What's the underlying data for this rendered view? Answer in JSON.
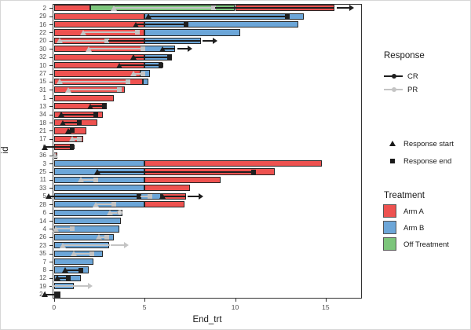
{
  "axes": {
    "x_label": "End_trt",
    "y_label": "id",
    "x_ticks": [
      0,
      5,
      10,
      15
    ],
    "x_range": [
      0,
      17
    ]
  },
  "legend": {
    "response": {
      "title": "Response",
      "items": [
        {
          "label": "CR",
          "color": "#1f1f1f"
        },
        {
          "label": "PR",
          "color": "#c4c4c4"
        }
      ]
    },
    "markers": [
      {
        "symbol": "triangle",
        "label": "Response start"
      },
      {
        "symbol": "square",
        "label": "Response end"
      }
    ],
    "treatment": {
      "title": "Treatment",
      "items": [
        {
          "label": "Arm A",
          "color": "#EE5250"
        },
        {
          "label": "Arm B",
          "color": "#6CA6D8"
        },
        {
          "label": "Off Treatment",
          "color": "#7CC57B"
        }
      ]
    }
  },
  "colors": {
    "armA": "#EE5250",
    "armB": "#6CA6D8",
    "off": "#7CC57B",
    "cr": "#1f1f1f",
    "pr": "#c4c4c4",
    "axis_text": "#4d4d4d",
    "panel_border": "#333333",
    "bar_border": "#262626"
  },
  "chart_data": {
    "type": "bar",
    "subtype": "swimmer-plot",
    "orientation": "horizontal",
    "xlabel": "End_trt",
    "ylabel": "id",
    "xlim": [
      0,
      17
    ],
    "grid": false,
    "legend_position": "right",
    "patients": [
      {
        "id": 2,
        "bars": [
          [
            "A",
            0,
            2.0
          ],
          [
            "O",
            2.0,
            10.0
          ],
          [
            "A",
            10.0,
            15.5
          ]
        ],
        "resp": [
          {
            "t": "PR",
            "a": 3.3,
            "b": 8.8,
            "sm": 1,
            "em": 1
          },
          {
            "t": "CR",
            "a": 8.9,
            "b": 15.5,
            "sm": 0,
            "em": 0
          }
        ],
        "arrow": {
          "t": "CR",
          "a": 15.6,
          "b": 16.5
        }
      },
      {
        "id": 29,
        "bars": [
          [
            "A",
            0,
            5.0
          ],
          [
            "B",
            5.0,
            13.8
          ]
        ],
        "resp": [
          {
            "t": "CR",
            "a": 5.2,
            "b": 12.9,
            "sm": 1,
            "em": 1
          }
        ]
      },
      {
        "id": 16,
        "bars": [
          [
            "A",
            0,
            5.0
          ],
          [
            "B",
            5.0,
            13.5
          ]
        ],
        "resp": [
          {
            "t": "CR",
            "a": 4.5,
            "b": 7.3,
            "sm": 1,
            "em": 1
          }
        ]
      },
      {
        "id": 22,
        "bars": [
          [
            "A",
            0,
            5.0
          ],
          [
            "B",
            5.0,
            10.3
          ]
        ],
        "resp": [
          {
            "t": "PR",
            "a": 1.6,
            "b": 4.6,
            "sm": 1,
            "em": 1
          }
        ]
      },
      {
        "id": 20,
        "bars": [
          [
            "A",
            0,
            5.0
          ],
          [
            "B",
            5.0,
            8.1
          ]
        ],
        "resp": [
          {
            "t": "PR",
            "a": 0.3,
            "b": 2.9,
            "sm": 1,
            "em": 1
          },
          {
            "t": "CR",
            "a": 3.0,
            "b": 8.1,
            "sm": 0,
            "em": 0
          }
        ],
        "arrow": {
          "t": "CR",
          "a": 8.2,
          "b": 9.0
        }
      },
      {
        "id": 30,
        "bars": [
          [
            "A",
            0,
            5.0
          ],
          [
            "B",
            5.0,
            6.7
          ]
        ],
        "resp": [
          {
            "t": "PR",
            "a": 1.9,
            "b": 4.9,
            "sm": 1,
            "em": 1
          },
          {
            "t": "CR",
            "a": 6.0,
            "b": 6.7,
            "sm": 1,
            "em": 0
          }
        ],
        "arrow": {
          "t": "CR",
          "a": 6.8,
          "b": 7.6
        }
      },
      {
        "id": 32,
        "bars": [
          [
            "A",
            0,
            5.0
          ],
          [
            "B",
            5.0,
            6.5
          ]
        ],
        "resp": [
          {
            "t": "CR",
            "a": 4.4,
            "b": 6.4,
            "sm": 1,
            "em": 1
          }
        ]
      },
      {
        "id": 10,
        "bars": [
          [
            "A",
            0,
            5.0
          ],
          [
            "B",
            5.0,
            6.0
          ]
        ],
        "resp": [
          {
            "t": "CR",
            "a": 3.6,
            "b": 5.9,
            "sm": 1,
            "em": 1
          }
        ]
      },
      {
        "id": 27,
        "bars": [
          [
            "A",
            0,
            4.8
          ],
          [
            "B",
            4.8,
            5.3
          ]
        ],
        "resp": [
          {
            "t": "PR",
            "a": 4.4,
            "b": 4.9,
            "sm": 1,
            "em": 1
          }
        ]
      },
      {
        "id": 15,
        "bars": [
          [
            "A",
            0,
            4.9
          ],
          [
            "B",
            4.9,
            5.2
          ]
        ],
        "resp": [
          {
            "t": "PR",
            "a": 0.3,
            "b": 4.1,
            "sm": 1,
            "em": 1
          }
        ]
      },
      {
        "id": 31,
        "bars": [
          [
            "A",
            0,
            3.9
          ]
        ],
        "resp": [
          {
            "t": "PR",
            "a": 0.8,
            "b": 3.6,
            "sm": 1,
            "em": 1
          }
        ]
      },
      {
        "id": 1,
        "bars": [
          [
            "A",
            0,
            3.3
          ]
        ],
        "resp": []
      },
      {
        "id": 13,
        "bars": [
          [
            "A",
            0,
            2.9
          ]
        ],
        "resp": [
          {
            "t": "CR",
            "a": 2.0,
            "b": 2.8,
            "sm": 1,
            "em": 1
          }
        ]
      },
      {
        "id": 34,
        "bars": [
          [
            "A",
            0,
            2.7
          ]
        ],
        "resp": [
          {
            "t": "CR",
            "a": 0.4,
            "b": 2.3,
            "sm": 1,
            "em": 1
          }
        ]
      },
      {
        "id": 18,
        "bars": [
          [
            "A",
            0,
            2.4
          ]
        ],
        "resp": [
          {
            "t": "CR",
            "a": 0.5,
            "b": 1.4,
            "sm": 1,
            "em": 1
          }
        ]
      },
      {
        "id": 21,
        "bars": [
          [
            "A",
            0,
            1.8
          ]
        ],
        "resp": [
          {
            "t": "CR",
            "a": 0.8,
            "b": 1.0,
            "sm": 1,
            "em": 1
          }
        ]
      },
      {
        "id": 17,
        "bars": [
          [
            "A",
            0,
            1.6
          ]
        ],
        "resp": [
          {
            "t": "PR",
            "a": 1.0,
            "b": 1.4,
            "sm": 1,
            "em": 1
          }
        ]
      },
      {
        "id": 9,
        "bars": [
          [
            "A",
            0,
            1.1
          ]
        ],
        "resp": [
          {
            "t": "CR",
            "a": -0.5,
            "b": 1.0,
            "sm": 1,
            "em": 1
          }
        ]
      },
      {
        "id": 36,
        "bars": [
          [
            "A",
            0,
            0.2
          ]
        ],
        "resp": [
          {
            "t": "PR",
            "a": 0.05,
            "b": 0.15,
            "sm": 1,
            "em": 0
          }
        ]
      },
      {
        "id": 3,
        "bars": [
          [
            "B",
            0,
            5.0
          ],
          [
            "A",
            5.0,
            14.8
          ]
        ],
        "resp": []
      },
      {
        "id": 25,
        "bars": [
          [
            "B",
            0,
            5.0
          ],
          [
            "A",
            5.0,
            12.2
          ]
        ],
        "resp": [
          {
            "t": "CR",
            "a": 2.4,
            "b": 11.0,
            "sm": 1,
            "em": 1
          }
        ]
      },
      {
        "id": 11,
        "bars": [
          [
            "B",
            0,
            5.0
          ],
          [
            "A",
            5.0,
            9.2
          ]
        ],
        "resp": [
          {
            "t": "PR",
            "a": 1.5,
            "b": 2.3,
            "sm": 1,
            "em": 1
          }
        ]
      },
      {
        "id": 33,
        "bars": [
          [
            "B",
            0,
            5.0
          ],
          [
            "A",
            5.0,
            7.5
          ]
        ],
        "resp": []
      },
      {
        "id": 5,
        "bars": [
          [
            "B",
            0,
            5.9
          ],
          [
            "A",
            5.9,
            7.3
          ]
        ],
        "resp": [
          {
            "t": "CR",
            "a": -0.3,
            "b": 4.7,
            "sm": 1,
            "em": 1
          },
          {
            "t": "PR",
            "a": 4.8,
            "b": 5.3,
            "sm": 0,
            "em": 1
          },
          {
            "t": "CR",
            "a": 6.0,
            "b": 7.3,
            "sm": 1,
            "em": 0
          }
        ],
        "arrow": {
          "t": "CR",
          "a": 7.4,
          "b": 8.2
        }
      },
      {
        "id": 28,
        "bars": [
          [
            "B",
            0,
            5.0
          ],
          [
            "A",
            5.0,
            7.2
          ]
        ],
        "resp": [
          {
            "t": "PR",
            "a": 2.3,
            "b": 3.3,
            "sm": 1,
            "em": 1
          }
        ]
      },
      {
        "id": 6,
        "bars": [
          [
            "B",
            0,
            3.8
          ]
        ],
        "resp": [
          {
            "t": "PR",
            "a": 3.1,
            "b": 3.6,
            "sm": 1,
            "em": 0,
            "circle": 1
          }
        ]
      },
      {
        "id": 14,
        "bars": [
          [
            "B",
            0,
            3.7
          ]
        ],
        "resp": []
      },
      {
        "id": 4,
        "bars": [
          [
            "B",
            0,
            3.6
          ]
        ],
        "resp": [
          {
            "t": "PR",
            "a": 0.1,
            "b": 1.0,
            "sm": 1,
            "em": 1
          }
        ]
      },
      {
        "id": 26,
        "bars": [
          [
            "B",
            0,
            3.3
          ]
        ],
        "resp": [
          {
            "t": "PR",
            "a": 2.5,
            "b": 2.9,
            "sm": 1,
            "em": 1
          }
        ]
      },
      {
        "id": 23,
        "bars": [
          [
            "B",
            0,
            3.05
          ]
        ],
        "resp": [
          {
            "t": "PR",
            "a": 0.5,
            "b": 3.1,
            "sm": 1,
            "em": 0
          }
        ],
        "arrow": {
          "t": "PR",
          "a": 3.15,
          "b": 4.1
        }
      },
      {
        "id": 35,
        "bars": [
          [
            "B",
            0,
            2.7
          ]
        ],
        "resp": [
          {
            "t": "PR",
            "a": 1.1,
            "b": 2.1,
            "sm": 1,
            "em": 1
          }
        ]
      },
      {
        "id": 7,
        "bars": [
          [
            "B",
            0,
            2.2
          ]
        ],
        "resp": []
      },
      {
        "id": 8,
        "bars": [
          [
            "B",
            0,
            1.9
          ]
        ],
        "resp": [
          {
            "t": "CR",
            "a": 0.6,
            "b": 1.5,
            "sm": 1,
            "em": 1
          }
        ]
      },
      {
        "id": 12,
        "bars": [
          [
            "B",
            0,
            1.5
          ]
        ],
        "resp": [
          {
            "t": "CR",
            "a": 0.2,
            "b": 0.8,
            "sm": 1,
            "em": 1
          }
        ]
      },
      {
        "id": 19,
        "bars": [
          [
            "B",
            0,
            1.1
          ]
        ],
        "resp": [
          {
            "t": "PR",
            "a": -0.1,
            "b": 1.6,
            "sm": 0,
            "em": 0
          }
        ],
        "arrow": {
          "t": "PR",
          "a": 1.6,
          "b": 2.1
        }
      },
      {
        "id": 24,
        "bars": [
          [
            "B",
            0,
            0.35
          ]
        ],
        "resp": [
          {
            "t": "CR",
            "a": -0.5,
            "b": 0.2,
            "sm": 1,
            "em": 1
          }
        ]
      }
    ]
  }
}
